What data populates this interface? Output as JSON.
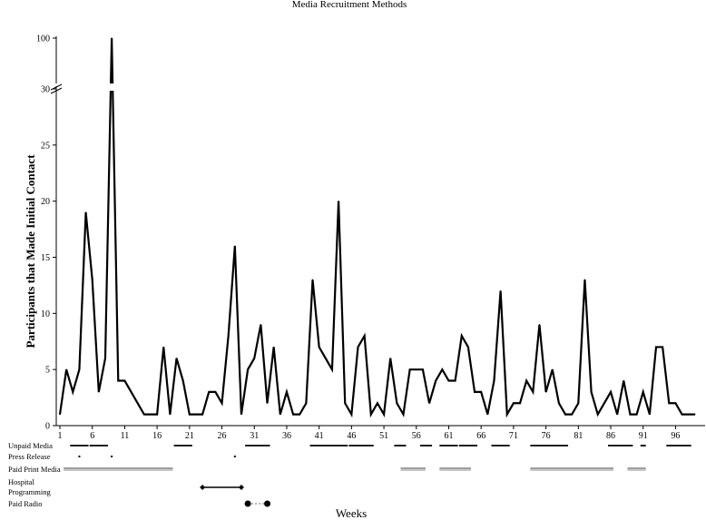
{
  "chart_data": {
    "type": "line",
    "title": "Media Recruitment Methods",
    "xlabel": "Weeks",
    "ylabel": "Participants that Made Initial Contact",
    "x_range": [
      1,
      100
    ],
    "x_ticks": [
      "1",
      "6",
      "11",
      "16",
      "21",
      "26",
      "31",
      "36",
      "41",
      "46",
      "51",
      "56",
      "61",
      "66",
      "71",
      "76",
      "81",
      "86",
      "91",
      "96"
    ],
    "y_ticks_lower": [
      "0",
      "5",
      "10",
      "15",
      "20",
      "25",
      "30"
    ],
    "y_ticks_upper": [
      "100"
    ],
    "axis_break": "between 30 and 100",
    "series": [
      {
        "values": [
          1,
          5,
          3,
          5,
          19,
          13,
          3,
          6,
          100,
          4,
          4,
          3,
          2,
          1,
          1,
          1,
          7,
          1,
          6,
          4,
          1,
          1,
          1,
          3,
          3,
          2,
          8,
          16,
          1,
          5,
          6,
          9,
          2,
          7,
          1,
          3,
          1,
          1,
          2,
          13,
          7,
          6,
          5,
          20,
          2,
          1,
          7,
          8,
          1,
          2,
          1,
          6,
          2,
          1,
          5,
          5,
          5,
          2,
          4,
          5,
          4,
          4,
          8,
          7,
          3,
          3,
          1,
          4,
          12,
          1,
          2,
          2,
          4,
          3,
          9,
          3,
          5,
          2,
          1,
          1,
          2,
          13,
          3,
          1,
          2,
          3,
          1,
          4,
          1,
          1,
          3,
          1,
          7,
          7,
          2,
          2,
          1,
          1,
          1
        ]
      }
    ],
    "methods": [
      {
        "label": "Unpaid Media",
        "style": "bar",
        "ranges": [
          [
            3,
            5
          ],
          [
            6,
            8
          ],
          [
            19,
            21
          ],
          [
            30,
            33
          ],
          [
            40,
            45
          ],
          [
            46,
            49
          ],
          [
            53,
            54
          ],
          [
            57,
            58
          ],
          [
            60,
            62
          ],
          [
            63,
            65
          ],
          [
            68,
            70
          ],
          [
            74,
            79
          ],
          [
            86,
            89
          ],
          [
            91,
            91
          ],
          [
            95,
            98
          ]
        ]
      },
      {
        "label": "Press Release",
        "style": "point",
        "weeks": [
          4,
          9,
          28
        ]
      },
      {
        "label": "Paid Print Media",
        "style": "double",
        "ranges": [
          [
            2,
            18
          ],
          [
            54,
            57
          ],
          [
            60,
            64
          ],
          [
            74,
            86
          ],
          [
            89,
            91
          ]
        ]
      },
      {
        "label": "Hospital\nProgramming",
        "style": "diamond-span",
        "ranges": [
          [
            23,
            29
          ]
        ]
      },
      {
        "label": "Paid Radio",
        "style": "dot-span",
        "ranges": [
          [
            30,
            33
          ]
        ]
      }
    ]
  }
}
